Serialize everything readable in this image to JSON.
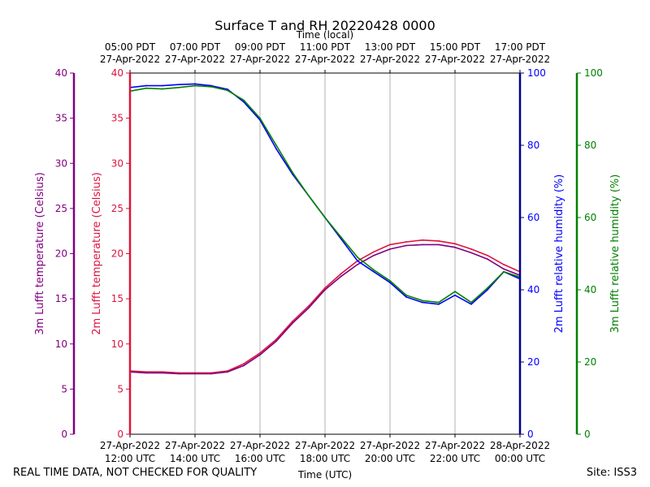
{
  "chart_data": {
    "type": "line",
    "title": "Surface T and RH 20220428 0000",
    "top_axis_label": "Time (local)",
    "bottom_axis_label": "Time (UTC)",
    "x_range_utc_hours": [
      12,
      24
    ],
    "x_ticks_utc": [
      {
        "hour": 12,
        "line1": "27-Apr-2022",
        "line2": "12:00 UTC"
      },
      {
        "hour": 14,
        "line1": "27-Apr-2022",
        "line2": "14:00 UTC"
      },
      {
        "hour": 16,
        "line1": "27-Apr-2022",
        "line2": "16:00 UTC"
      },
      {
        "hour": 18,
        "line1": "27-Apr-2022",
        "line2": "18:00 UTC"
      },
      {
        "hour": 20,
        "line1": "27-Apr-2022",
        "line2": "20:00 UTC"
      },
      {
        "hour": 22,
        "line1": "27-Apr-2022",
        "line2": "22:00 UTC"
      },
      {
        "hour": 24,
        "line1": "28-Apr-2022",
        "line2": "00:00 UTC"
      }
    ],
    "x_ticks_local": [
      {
        "hour": 12,
        "line1": "05:00 PDT",
        "line2": "27-Apr-2022"
      },
      {
        "hour": 14,
        "line1": "07:00 PDT",
        "line2": "27-Apr-2022"
      },
      {
        "hour": 16,
        "line1": "09:00 PDT",
        "line2": "27-Apr-2022"
      },
      {
        "hour": 18,
        "line1": "11:00 PDT",
        "line2": "27-Apr-2022"
      },
      {
        "hour": 20,
        "line1": "13:00 PDT",
        "line2": "27-Apr-2022"
      },
      {
        "hour": 22,
        "line1": "15:00 PDT",
        "line2": "27-Apr-2022"
      },
      {
        "hour": 24,
        "line1": "17:00 PDT",
        "line2": "27-Apr-2022"
      }
    ],
    "axes": {
      "temp3m": {
        "label": "3m Lufft temperature (Celsius)",
        "ylim": [
          0,
          40
        ],
        "ticks": [
          0,
          5,
          10,
          15,
          20,
          25,
          30,
          35,
          40
        ],
        "color": "#800080"
      },
      "temp2m": {
        "label": "2m Lufft temperature (Celsius)",
        "ylim": [
          0,
          40
        ],
        "ticks": [
          0,
          5,
          10,
          15,
          20,
          25,
          30,
          35,
          40
        ],
        "color": "#dc143c"
      },
      "rh2m": {
        "label": "2m Lufft relative humidity (%)",
        "ylim": [
          0,
          100
        ],
        "ticks": [
          0,
          20,
          40,
          60,
          80,
          100
        ],
        "color": "#0000ff",
        "spine_color": "#00008b"
      },
      "rh3m": {
        "label": "3m Lufft relative humidity (%)",
        "ylim": [
          0,
          100
        ],
        "ticks": [
          0,
          20,
          40,
          60,
          80,
          100
        ],
        "color": "#008000"
      }
    },
    "series": [
      {
        "name": "2m temperature",
        "axis": "temp2m",
        "color": "#dc143c",
        "x": [
          12.0,
          12.5,
          13.0,
          13.5,
          14.0,
          14.5,
          15.0,
          15.5,
          16.0,
          16.5,
          17.0,
          17.5,
          18.0,
          18.5,
          19.0,
          19.5,
          20.0,
          20.5,
          21.0,
          21.5,
          22.0,
          22.5,
          23.0,
          23.5,
          24.0
        ],
        "values": [
          7.0,
          6.9,
          6.9,
          6.8,
          6.8,
          6.8,
          7.0,
          7.8,
          9.0,
          10.5,
          12.5,
          14.2,
          16.2,
          17.8,
          19.2,
          20.2,
          21.0,
          21.3,
          21.5,
          21.4,
          21.1,
          20.5,
          19.8,
          18.8,
          18.0
        ]
      },
      {
        "name": "3m temperature",
        "axis": "temp3m",
        "color": "#800080",
        "x": [
          12.0,
          12.5,
          13.0,
          13.5,
          14.0,
          14.5,
          15.0,
          15.5,
          16.0,
          16.5,
          17.0,
          17.5,
          18.0,
          18.5,
          19.0,
          19.5,
          20.0,
          20.5,
          21.0,
          21.5,
          22.0,
          22.5,
          23.0,
          23.5,
          24.0
        ],
        "values": [
          6.9,
          6.8,
          6.8,
          6.7,
          6.7,
          6.7,
          6.9,
          7.6,
          8.8,
          10.3,
          12.3,
          14.0,
          16.0,
          17.5,
          18.8,
          19.8,
          20.5,
          20.9,
          21.0,
          21.0,
          20.7,
          20.1,
          19.4,
          18.3,
          17.6
        ]
      },
      {
        "name": "2m relative humidity",
        "axis": "rh2m",
        "color": "#0000ff",
        "x": [
          12.0,
          12.5,
          13.0,
          13.5,
          14.0,
          14.5,
          15.0,
          15.5,
          16.0,
          16.5,
          17.0,
          17.5,
          18.0,
          18.5,
          19.0,
          19.5,
          20.0,
          20.5,
          21.0,
          21.5,
          22.0,
          22.5,
          23.0,
          23.5,
          24.0
        ],
        "values": [
          96.0,
          96.5,
          96.5,
          96.8,
          97.0,
          96.5,
          95.5,
          92.0,
          87.0,
          79.0,
          72.0,
          66.0,
          60.0,
          54.0,
          48.0,
          45.0,
          42.0,
          38.0,
          36.5,
          36.0,
          38.5,
          36.0,
          40.0,
          45.0,
          43.0
        ]
      },
      {
        "name": "3m relative humidity",
        "axis": "rh3m",
        "color": "#008000",
        "x": [
          12.0,
          12.5,
          13.0,
          13.5,
          14.0,
          14.5,
          15.0,
          15.5,
          16.0,
          16.5,
          17.0,
          17.5,
          18.0,
          18.5,
          19.0,
          19.5,
          20.0,
          20.5,
          21.0,
          21.5,
          22.0,
          22.5,
          23.0,
          23.5,
          24.0
        ],
        "values": [
          95.0,
          95.8,
          95.6,
          96.0,
          96.5,
          96.2,
          95.2,
          92.5,
          87.5,
          80.0,
          72.5,
          66.0,
          60.0,
          54.5,
          49.0,
          45.5,
          42.5,
          38.5,
          37.0,
          36.5,
          39.5,
          36.5,
          40.5,
          45.0,
          43.5
        ]
      }
    ]
  },
  "footer": {
    "left": "REAL TIME DATA, NOT CHECKED FOR QUALITY",
    "right": "Site: ISS3"
  }
}
